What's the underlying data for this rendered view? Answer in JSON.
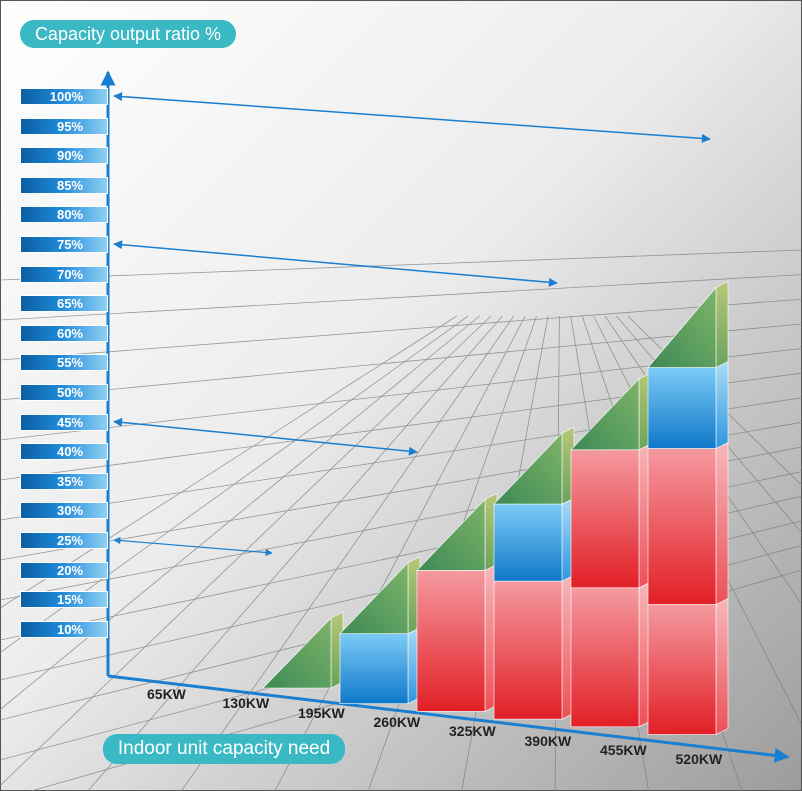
{
  "chart_data": {
    "type": "bar",
    "title": "Capacity output ratio %",
    "xlabel": "Indoor unit capacity need",
    "ylabel": "Capacity output ratio %",
    "y_ticks": [
      "10%",
      "15%",
      "20%",
      "25%",
      "30%",
      "35%",
      "40%",
      "45%",
      "50%",
      "55%",
      "60%",
      "65%",
      "70%",
      "75%",
      "80%",
      "85%",
      "90%",
      "95%",
      "100%"
    ],
    "categories": [
      "65KW",
      "130KW",
      "195KW",
      "260KW",
      "325KW",
      "390KW",
      "455KW",
      "520KW"
    ],
    "arrow_ratios": [
      100,
      75,
      45,
      25
    ],
    "series": [],
    "colors": {
      "green": "#4f9a63",
      "blue": "#1f8fdc",
      "red": "#e8343a",
      "pill": "#3ab8c4",
      "axis": "#1a7fd0"
    }
  }
}
